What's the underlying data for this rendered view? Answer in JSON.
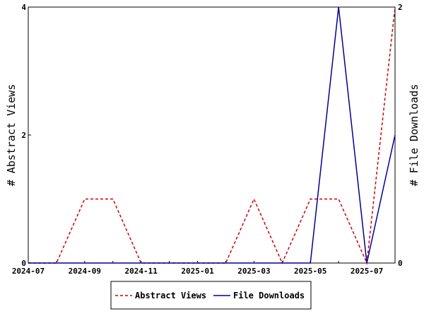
{
  "chart_data": {
    "type": "line",
    "x": [
      "2024-07",
      "2024-08",
      "2024-09",
      "2024-10",
      "2024-11",
      "2024-12",
      "2025-01",
      "2025-02",
      "2025-03",
      "2025-04",
      "2025-05",
      "2025-06",
      "2025-07",
      "2025-08"
    ],
    "x_tick_labels": [
      "2024-07",
      "2024-09",
      "2024-11",
      "2025-01",
      "2025-03",
      "2025-05",
      "2025-07"
    ],
    "series": [
      {
        "name": "Abstract Views",
        "axis": "left",
        "color": "#cc0000",
        "dash": "dashed",
        "values": [
          0,
          0,
          1,
          1,
          0,
          0,
          0,
          0,
          1,
          0,
          1,
          1,
          0,
          4
        ]
      },
      {
        "name": "File Downloads",
        "axis": "right",
        "color": "#000099",
        "dash": "solid",
        "values": [
          0,
          0,
          0,
          0,
          0,
          0,
          0,
          0,
          0,
          0,
          0,
          2,
          0,
          1
        ]
      }
    ],
    "ylabel_left": "# Abstract Views",
    "ylabel_right": "# File Downloads",
    "ylim_left": [
      0,
      4
    ],
    "ylim_right": [
      0,
      2
    ],
    "yticks_left": [
      "0",
      "2",
      "4"
    ],
    "yticks_right": [
      "0",
      "2"
    ],
    "grid": false,
    "legend_position": "bottom-center"
  }
}
